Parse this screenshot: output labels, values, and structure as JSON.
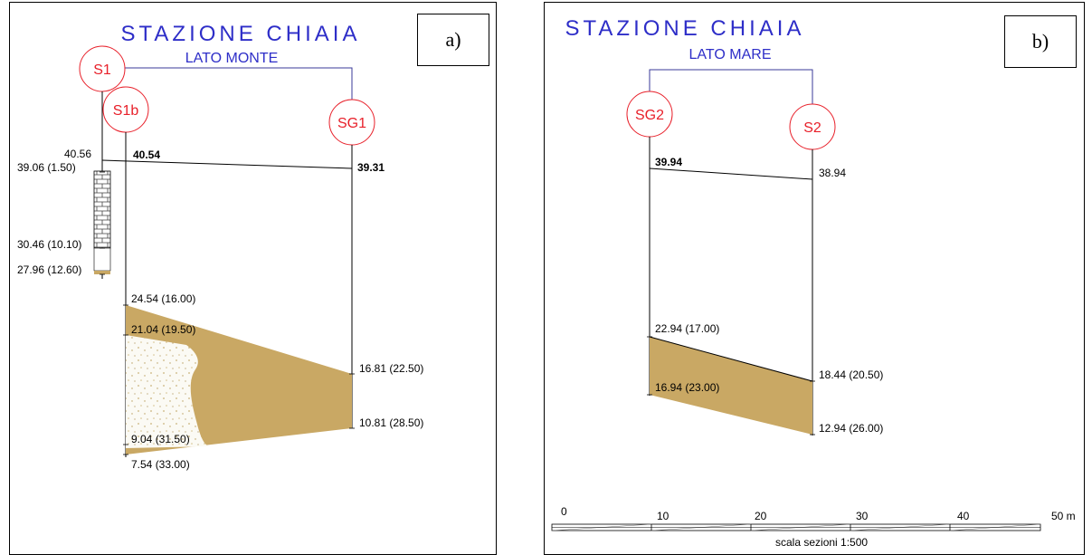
{
  "colors": {
    "title": "#2e2ec8",
    "borehole_circle": "#e8202a",
    "sand_layer": "#c9a864",
    "connector_line": "#3a3a9a"
  },
  "panel_a": {
    "tag": "a)",
    "title": "STAZIONE CHIAIA",
    "subtitle": "LATO MONTE",
    "boreholes": {
      "s1": "S1",
      "s1b": "S1b",
      "sg1": "SG1"
    },
    "labels": {
      "s1_top": "40.56",
      "s1b_top": "40.54",
      "sg1_top": "39.31",
      "s1_fill_base": "39.06  (1.50)",
      "s1_wall_base": "30.46  (10.10)",
      "s1_bottom": "27.96  (12.60)",
      "s1b_l1": "24.54  (16.00)",
      "s1b_l2": "21.04  (19.50)",
      "s1b_l3": "9.04  (31.50)",
      "s1b_l4": "7.54  (33.00)",
      "sg1_l1": "16.81  (22.50)",
      "sg1_l2": "10.81  (28.50)"
    }
  },
  "panel_b": {
    "tag": "b)",
    "title": "STAZIONE CHIAIA",
    "subtitle": "LATO MARE",
    "boreholes": {
      "sg2": "SG2",
      "s2": "S2"
    },
    "labels": {
      "sg2_top": "39.94",
      "s2_top": "38.94",
      "sg2_l1": "22.94  (17.00)",
      "sg2_l2": "16.94  (23.00)",
      "s2_l1": "18.44  (20.50)",
      "s2_l2": "12.94  (26.00)"
    },
    "scale": {
      "ticks": [
        "0",
        "10",
        "20",
        "30",
        "40",
        "50 m"
      ],
      "caption": "scala sezioni 1:500"
    }
  }
}
